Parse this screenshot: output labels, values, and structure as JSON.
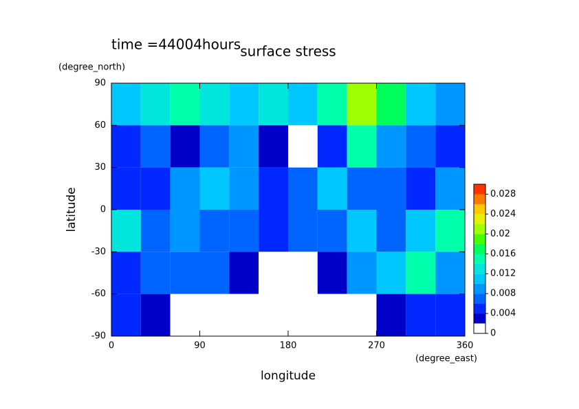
{
  "chart_data": {
    "type": "contour",
    "title": "surface stress",
    "subtitle": "time =44004hours",
    "x_label": "longitude",
    "x_unit": "(degree_east)",
    "y_label": "latitude",
    "y_unit": "(degree_north)",
    "xlim": [
      0,
      360
    ],
    "xticks": [
      0,
      90,
      180,
      270,
      360
    ],
    "ylim": [
      -90,
      90
    ],
    "yticks": [
      -90,
      -60,
      -30,
      0,
      30,
      60,
      90
    ],
    "x": [
      15,
      45,
      75,
      105,
      135,
      165,
      195,
      225,
      255,
      285,
      315,
      345
    ],
    "y": [
      75,
      45,
      15,
      -15,
      -45,
      -75
    ],
    "z": [
      [
        0.01,
        0.012,
        0.014,
        0.012,
        0.01,
        0.012,
        0.01,
        0.014,
        0.02,
        0.016,
        0.01,
        0.008
      ],
      [
        0.005,
        0.006,
        0.002,
        0.006,
        0.008,
        0.002,
        0.001,
        0.004,
        0.014,
        0.008,
        0.006,
        0.004
      ],
      [
        0.004,
        0.004,
        0.008,
        0.01,
        0.008,
        0.004,
        0.006,
        0.01,
        0.006,
        0.006,
        0.004,
        0.008
      ],
      [
        0.012,
        0.006,
        0.008,
        0.006,
        0.006,
        0.004,
        0.006,
        0.006,
        0.01,
        0.006,
        0.01,
        0.014
      ],
      [
        0.004,
        0.006,
        0.006,
        0.006,
        0.002,
        0.001,
        0.001,
        0.002,
        0.008,
        0.01,
        0.014,
        0.008
      ],
      [
        0.004,
        0.002,
        0.001,
        0.001,
        0.001,
        0.001,
        0.001,
        0.001,
        0.001,
        0.002,
        0.004,
        0.004
      ]
    ],
    "clim": [
      0,
      0.03
    ],
    "levels": [
      0,
      0.002,
      0.004,
      0.006,
      0.008,
      0.01,
      0.012,
      0.014,
      0.016,
      0.018,
      0.02,
      0.022,
      0.024,
      0.026,
      0.028,
      0.03
    ],
    "colors": [
      "#ffffff",
      "#0000c8",
      "#0028ff",
      "#0064ff",
      "#0096ff",
      "#00c8ff",
      "#00e6dc",
      "#00ffaa",
      "#00ff5a",
      "#46ff00",
      "#a0ff00",
      "#e6f000",
      "#ffc800",
      "#ff7800",
      "#ff3200"
    ],
    "cticks": [
      0,
      0.004,
      0.008,
      0.012,
      0.016,
      0.02,
      0.024,
      0.028
    ]
  }
}
